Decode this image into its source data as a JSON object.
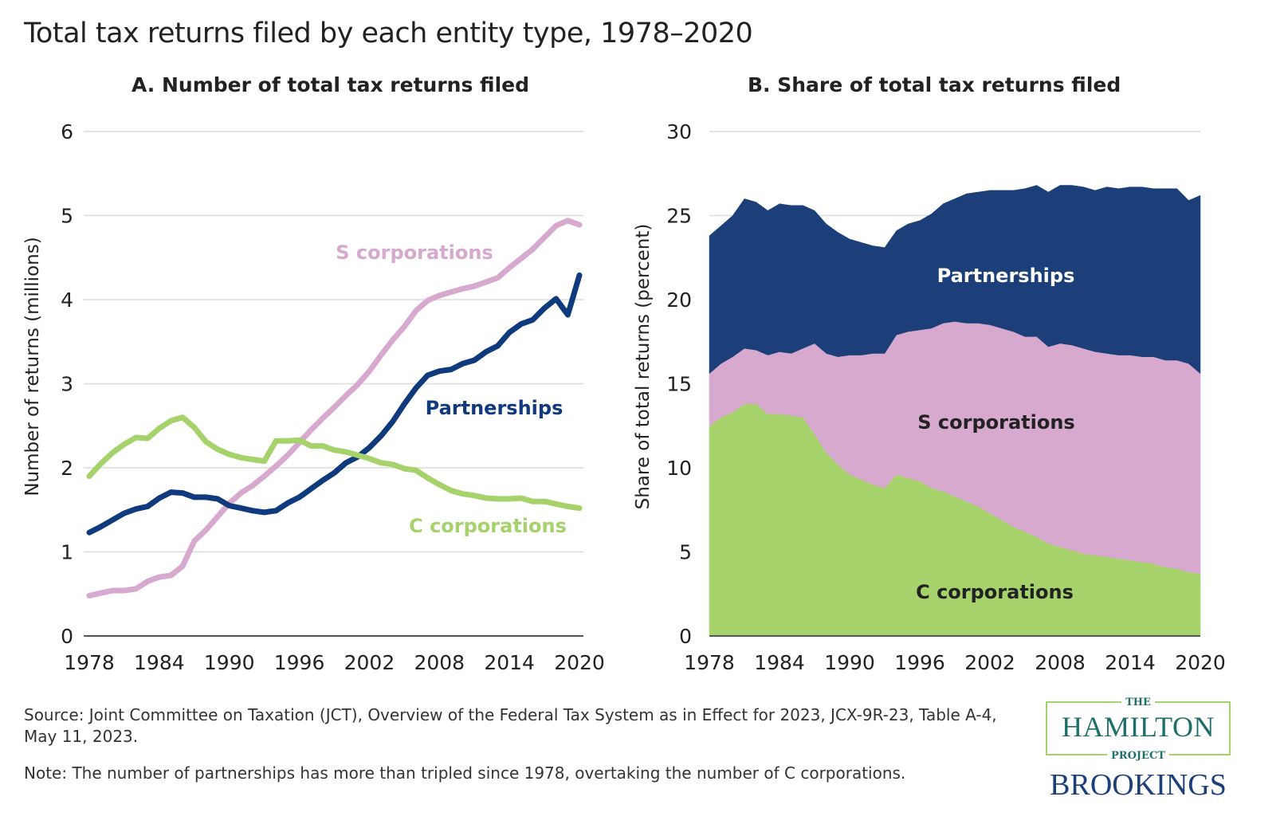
{
  "title": "Total tax returns filed by each entity type, 1978–2020",
  "source": "Source: Joint Committee on Taxation (JCT), Overview of the Federal Tax System as in Effect for 2023, JCX-9R-23, Table A-4, May 11, 2023.",
  "note": "Note: The number of partnerships has more than tripled since 1978, overtaking the number of C corporations.",
  "logo": {
    "the": "THE",
    "hamilton": "HAMILTON",
    "project": "PROJECT",
    "brookings": "BROOKINGS"
  },
  "colors": {
    "c_corporations": "#a6d26b",
    "s_corporations": "#d8a9cf",
    "partnerships_line": "#0f3a7d",
    "partnerships_area": "#1c3f7a"
  },
  "chart_data": [
    {
      "type": "line",
      "title": "A. Number of total tax returns filed",
      "ylabel": "Number of returns (millions)",
      "xlabel": "",
      "ylim": [
        0,
        6
      ],
      "yticks": [
        "0",
        "1",
        "2",
        "3",
        "4",
        "5",
        "6"
      ],
      "xticks": [
        "1978",
        "1984",
        "1990",
        "1996",
        "2002",
        "2008",
        "2014",
        "2020"
      ],
      "grid": true,
      "x_start": 1978,
      "x_end": 2020,
      "series": [
        {
          "name": "S corporations",
          "color": "#d8a9cf",
          "values": [
            0.48,
            0.51,
            0.54,
            0.54,
            0.56,
            0.65,
            0.7,
            0.72,
            0.83,
            1.13,
            1.26,
            1.42,
            1.58,
            1.7,
            1.79,
            1.9,
            2.02,
            2.15,
            2.3,
            2.45,
            2.59,
            2.72,
            2.86,
            2.99,
            3.15,
            3.34,
            3.52,
            3.68,
            3.87,
            3.99,
            4.05,
            4.09,
            4.13,
            4.16,
            4.21,
            4.26,
            4.38,
            4.49,
            4.6,
            4.74,
            4.88,
            4.94,
            4.89
          ]
        },
        {
          "name": "Partnerships",
          "color": "#0f3a7d",
          "values": [
            1.23,
            1.3,
            1.38,
            1.46,
            1.51,
            1.54,
            1.64,
            1.71,
            1.7,
            1.65,
            1.65,
            1.63,
            1.55,
            1.52,
            1.49,
            1.47,
            1.49,
            1.58,
            1.65,
            1.75,
            1.85,
            1.94,
            2.06,
            2.13,
            2.24,
            2.38,
            2.55,
            2.76,
            2.95,
            3.1,
            3.15,
            3.17,
            3.24,
            3.28,
            3.38,
            3.45,
            3.61,
            3.71,
            3.76,
            3.9,
            4.01,
            3.82,
            4.29
          ]
        },
        {
          "name": "C corporations",
          "color": "#a6d26b",
          "values": [
            1.9,
            2.05,
            2.18,
            2.28,
            2.36,
            2.35,
            2.47,
            2.56,
            2.6,
            2.48,
            2.31,
            2.22,
            2.16,
            2.12,
            2.1,
            2.08,
            2.32,
            2.32,
            2.33,
            2.26,
            2.26,
            2.21,
            2.19,
            2.15,
            2.11,
            2.06,
            2.04,
            1.99,
            1.97,
            1.88,
            1.8,
            1.73,
            1.69,
            1.67,
            1.64,
            1.63,
            1.63,
            1.64,
            1.6,
            1.6,
            1.57,
            1.54,
            1.52
          ]
        }
      ]
    },
    {
      "type": "area",
      "stacked": true,
      "title": "B. Share of total tax returns filed",
      "ylabel": "Share of total returns (percent)",
      "xlabel": "",
      "ylim": [
        0,
        30
      ],
      "yticks": [
        "0",
        "5",
        "10",
        "15",
        "20",
        "25",
        "30"
      ],
      "xticks": [
        "1978",
        "1984",
        "1990",
        "1996",
        "2002",
        "2008",
        "2014",
        "2020"
      ],
      "grid": true,
      "x_start": 1978,
      "x_end": 2020,
      "series": [
        {
          "name": "C corporations",
          "color": "#a6d26b",
          "values": [
            12.5,
            13.0,
            13.3,
            13.8,
            13.8,
            13.2,
            13.2,
            13.1,
            13.0,
            12.0,
            10.9,
            10.2,
            9.6,
            9.3,
            9.0,
            8.8,
            9.6,
            9.4,
            9.2,
            8.8,
            8.6,
            8.3,
            8.0,
            7.7,
            7.3,
            6.9,
            6.5,
            6.2,
            5.9,
            5.5,
            5.3,
            5.1,
            4.9,
            4.8,
            4.7,
            4.6,
            4.5,
            4.4,
            4.3,
            4.1,
            4.0,
            3.8,
            3.7
          ]
        },
        {
          "name": "S corporations",
          "color": "#d8a9cf",
          "values": [
            3.1,
            3.2,
            3.3,
            3.3,
            3.2,
            3.5,
            3.7,
            3.7,
            4.1,
            5.4,
            5.9,
            6.4,
            7.1,
            7.4,
            7.8,
            8.0,
            8.3,
            8.7,
            9.0,
            9.5,
            10.0,
            10.4,
            10.6,
            10.9,
            11.2,
            11.4,
            11.6,
            11.6,
            11.9,
            11.7,
            12.1,
            12.2,
            12.2,
            12.1,
            12.1,
            12.1,
            12.2,
            12.2,
            12.3,
            12.3,
            12.4,
            12.4,
            11.9
          ]
        },
        {
          "name": "Partnerships",
          "color": "#1c3f7a",
          "values": [
            8.2,
            8.2,
            8.4,
            8.9,
            8.8,
            8.6,
            8.8,
            8.8,
            8.5,
            7.9,
            7.7,
            7.4,
            6.9,
            6.7,
            6.4,
            6.3,
            6.2,
            6.4,
            6.5,
            6.8,
            7.1,
            7.3,
            7.7,
            7.8,
            8.0,
            8.2,
            8.4,
            8.8,
            9.0,
            9.2,
            9.4,
            9.5,
            9.6,
            9.6,
            9.9,
            9.9,
            10.0,
            10.1,
            10.0,
            10.2,
            10.2,
            9.7,
            10.6
          ]
        }
      ]
    }
  ]
}
